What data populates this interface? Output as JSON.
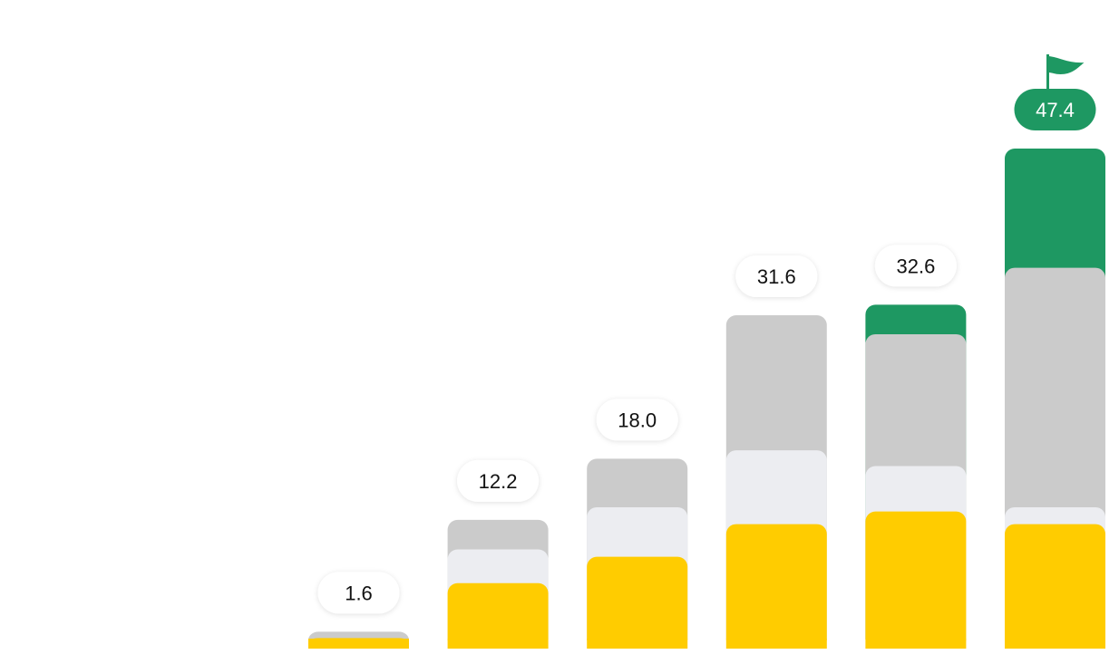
{
  "chart_data": {
    "type": "bar",
    "stacked": true,
    "categories": [
      "",
      "",
      "",
      "",
      "",
      ""
    ],
    "series": [
      {
        "color": "#FFCC00",
        "values": [
          1.0,
          6.2,
          8.7,
          11.8,
          13.0,
          11.8
        ]
      },
      {
        "color": "#ECEDF1",
        "values": [
          0.0,
          3.2,
          4.7,
          7.0,
          4.3,
          1.6
        ]
      },
      {
        "color": "#CBCBCB",
        "values": [
          0.6,
          2.8,
          4.6,
          12.8,
          12.5,
          22.7
        ]
      },
      {
        "color": "#1E9862",
        "values": [
          0.0,
          0.0,
          0.0,
          0.0,
          2.8,
          11.3
        ]
      }
    ],
    "totals": [
      1.6,
      12.2,
      18.0,
      31.6,
      32.6,
      47.4
    ],
    "total_labels": [
      "1.6",
      "12.2",
      "18.0",
      "31.6",
      "32.6",
      "47.4"
    ],
    "highlight_index": 5,
    "highlight_color": "#1E9862",
    "highlight_icon": "flag-icon",
    "ylim": [
      0,
      48
    ],
    "grid": false,
    "legend": "none",
    "title": "",
    "xlabel": "",
    "ylabel": ""
  }
}
